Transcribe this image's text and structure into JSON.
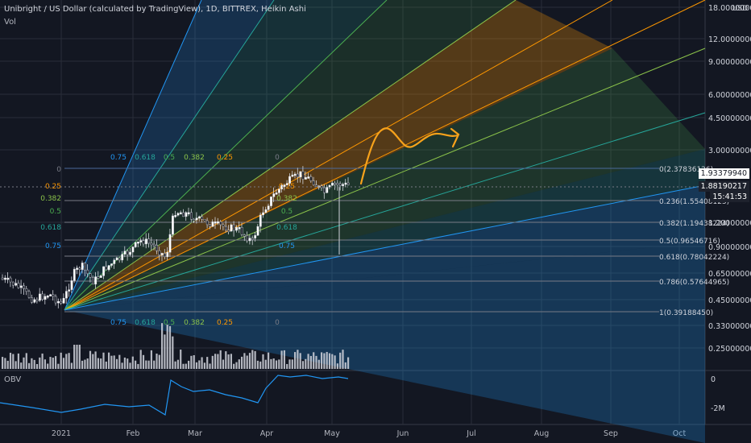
{
  "header": {
    "title": "Unibright / US Dollar (calculated by TradingView), 1D, BITTREX, Heikin Ashi",
    "volume_label": "Vol",
    "obv_label": "OBV",
    "currency": "USD"
  },
  "price_tags": {
    "last": "1.93379940",
    "current": "1.88190217",
    "countdown": "15:41:53"
  },
  "colors": {
    "background": "#131722",
    "grid": "#2a2e39",
    "up": "#ffffff",
    "down": "#1e222d",
    "fan_orange": "#ff9800",
    "fan_green": "#4caf50",
    "fan_teal": "#26a69a",
    "fan_blue": "#2196f3",
    "annotation": "#f7a21b"
  },
  "chart_data": [
    {
      "type": "candlestick",
      "title": "Unibright / US Dollar (calculated by TradingView), 1D, BITTREX, Heikin Ashi",
      "scale": "log",
      "x_ticks": [
        "2021",
        "Feb",
        "Mar",
        "Apr",
        "May",
        "Jun",
        "Jul",
        "Aug",
        "Sep",
        "Oct"
      ],
      "y_ticks": [
        "18.0000000",
        "12.00000000",
        "9.00000000",
        "6.00000000",
        "4.50000000",
        "3.00000000",
        "1.20000000",
        "0.90000000",
        "0.65000000",
        "0.45000000",
        "0.33000000",
        "0.25000000"
      ],
      "fib_retracement": [
        {
          "level": "0",
          "price": "2.37836126",
          "label": "0(2.37836126)"
        },
        {
          "level": "0.236",
          "price": "1.55408125",
          "label": "0.236(1.55408125)"
        },
        {
          "level": "0.382",
          "price": "1.19438224",
          "label": "0.382(1.19438224)"
        },
        {
          "level": "0.5",
          "price": "0.96546716",
          "label": "0.5(0.96546716)"
        },
        {
          "level": "0.618",
          "price": "0.78042224",
          "label": "0.618(0.78042224)"
        },
        {
          "level": "0.786",
          "price": "0.57644965",
          "label": "0.786(0.57644965)"
        },
        {
          "level": "1",
          "price": "0.39188450",
          "label": "1(0.39188450)"
        }
      ],
      "fan_labels_top": [
        "0.75",
        "0.618",
        "0.5",
        "0.382",
        "0.25",
        "0"
      ],
      "fan_labels_left": [
        "0",
        "0.25",
        "0.382",
        "0.5",
        "0.618",
        "0.75"
      ],
      "fan_labels_mid": [
        "0.25",
        "0.382",
        "0.5",
        "0.618",
        "0.75"
      ],
      "fan_labels_bottom": [
        "0.75",
        "0.618",
        "0.5",
        "0.382",
        "0.25",
        "0"
      ],
      "grid": true
    },
    {
      "type": "bar",
      "title": "Vol",
      "grid": true
    },
    {
      "type": "line",
      "title": "OBV",
      "y_ticks": [
        "0",
        "-2M"
      ],
      "grid": true
    }
  ]
}
